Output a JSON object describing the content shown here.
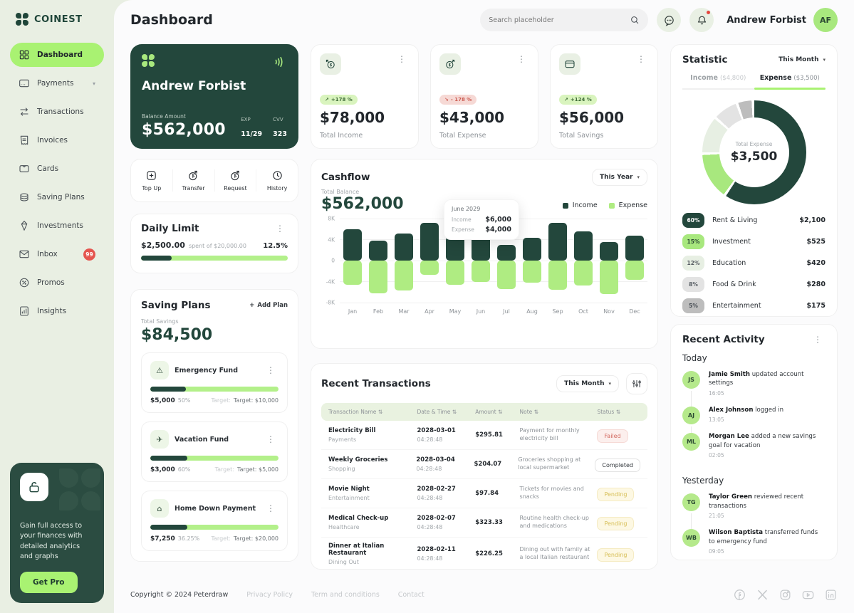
{
  "brand": {
    "name": "COINEST"
  },
  "header": {
    "title": "Dashboard",
    "search_placeholder": "Search placeholder",
    "user_name": "Andrew Forbist",
    "user_initials": "AF"
  },
  "icons": {
    "kebab": "⋮",
    "chevron_down": "▾",
    "sort": "⇅",
    "plus": "+",
    "warning_glyph": "⚠",
    "plane_glyph": "✈",
    "home_glyph": "⌂",
    "trend_up": "↗",
    "trend_down": "↘"
  },
  "sidebar": {
    "items": [
      {
        "label": "Dashboard",
        "icon": "grid",
        "active": true
      },
      {
        "label": "Payments",
        "icon": "payments",
        "chevron": true
      },
      {
        "label": "Transactions",
        "icon": "transactions"
      },
      {
        "label": "Invoices",
        "icon": "invoices"
      },
      {
        "label": "Cards",
        "icon": "cards"
      },
      {
        "label": "Saving Plans",
        "icon": "saving-plans"
      },
      {
        "label": "Investments",
        "icon": "investments"
      },
      {
        "label": "Inbox",
        "icon": "inbox",
        "badge": "99"
      },
      {
        "label": "Promos",
        "icon": "promos"
      },
      {
        "label": "Insights",
        "icon": "insights"
      }
    ],
    "promo": {
      "text": "Gain full access to your finances with detailed analytics and graphs",
      "button": "Get Pro"
    }
  },
  "balance_card": {
    "holder": "Andrew Forbist",
    "balance_label": "Balance Amount",
    "balance": "$562,000",
    "exp_label": "EXP",
    "exp": "11/29",
    "cvv_label": "CVV",
    "cvv": "323"
  },
  "quick_actions": [
    {
      "label": "Top Up",
      "icon": "topup"
    },
    {
      "label": "Transfer",
      "icon": "transfer"
    },
    {
      "label": "Request",
      "icon": "request"
    },
    {
      "label": "History",
      "icon": "history"
    }
  ],
  "stats": [
    {
      "change": "+178 %",
      "trend": "up",
      "value": "$78,000",
      "label": "Total Income",
      "icon": "income"
    },
    {
      "change": "- 178 %",
      "trend": "down",
      "value": "$43,000",
      "label": "Total Expense",
      "icon": "expense"
    },
    {
      "change": "+124 %",
      "trend": "up",
      "value": "$56,000",
      "label": "Total Savings",
      "icon": "wallet"
    }
  ],
  "daily_limit": {
    "title": "Daily Limit",
    "spent": "$2,500.00",
    "spent_suffix": "spent of $20,000.00",
    "percent": "12.5%",
    "progress_pct": 21
  },
  "saving_plans": {
    "title": "Saving Plans",
    "add_label": "Add Plan",
    "total_label": "Total Savings",
    "total": "$84,500",
    "plans": [
      {
        "name": "Emergency Fund",
        "icon": "warning",
        "amount": "$5,000",
        "percent": "50%",
        "target_label": "Target:",
        "target": "Target: $10,000",
        "progress_pct": 28
      },
      {
        "name": "Vacation Fund",
        "icon": "plane",
        "amount": "$3,000",
        "percent": "60%",
        "target_label": "Target:",
        "target": "Target: $5,000",
        "progress_pct": 29
      },
      {
        "name": "Home Down Payment",
        "icon": "home",
        "amount": "$7,250",
        "percent": "36.25%",
        "target_label": "Target:",
        "target": "Target: $20,000",
        "progress_pct": 29
      }
    ]
  },
  "cashflow": {
    "title": "Cashflow",
    "period": "This Year",
    "total_label": "Total Balance",
    "total": "$562,000",
    "tooltip": {
      "title": "June 2029",
      "income_label": "Income",
      "income": "$6,000",
      "expense_label": "Expense",
      "expense": "$4,000"
    },
    "chart_data": {
      "type": "bar",
      "title": "Cashflow",
      "categories": [
        "Jan",
        "Feb",
        "Mar",
        "Apr",
        "May",
        "Jun",
        "Jul",
        "Aug",
        "Sep",
        "Oct",
        "Nov",
        "Dec"
      ],
      "series": [
        {
          "name": "Income",
          "color": "#23473C",
          "values": [
            6.0,
            3.8,
            5.2,
            7.2,
            4.6,
            6.0,
            3.0,
            4.4,
            7.2,
            5.6,
            3.5,
            4.7
          ]
        },
        {
          "name": "Expense",
          "color": "#AFEC82",
          "values": [
            -4.6,
            -6.3,
            -5.7,
            -2.7,
            -4.6,
            -4.0,
            -5.4,
            -4.2,
            -5.5,
            -4.8,
            -6.4,
            -3.6
          ]
        }
      ],
      "y_ticks": [
        "8K",
        "4K",
        "0",
        "-4K",
        "-8K"
      ],
      "ylim": [
        -8,
        8
      ],
      "unit": "thousand dollars",
      "legend_position": "top-right",
      "grid": true
    }
  },
  "transactions": {
    "title": "Recent Transactions",
    "period": "This Month",
    "columns": [
      "Transaction Name",
      "Date & Time",
      "Amount",
      "Note",
      "Status"
    ],
    "rows": [
      {
        "name": "Electricity Bill",
        "category": "Payments",
        "date": "2028-03-01",
        "time": "04:28:48",
        "amount": "$295.81",
        "note": "Payment for monthly electricity bill",
        "status": "Failed"
      },
      {
        "name": "Weekly Groceries",
        "category": "Shopping",
        "date": "2028-03-04",
        "time": "04:28:48",
        "amount": "$204.07",
        "note": "Groceries shopping at local supermarket",
        "status": "Completed"
      },
      {
        "name": "Movie Night",
        "category": "Entertainment",
        "date": "2028-02-27",
        "time": "04:28:48",
        "amount": "$97.84",
        "note": "Tickets for movies and snacks",
        "status": "Pending"
      },
      {
        "name": "Medical Check-up",
        "category": "Healthcare",
        "date": "2028-02-07",
        "time": "04:28:48",
        "amount": "$323.33",
        "note": "Routine health check-up and medications",
        "status": "Pending"
      },
      {
        "name": "Dinner at Italian Restaurant",
        "category": "Dining Out",
        "date": "2028-02-11",
        "time": "04:28:48",
        "amount": "$226.25",
        "note": "Dining out with family at a local Italian restaurant",
        "status": "Pending"
      }
    ]
  },
  "statistic": {
    "title": "Statistic",
    "period": "This Month",
    "tabs": [
      {
        "label": "Income",
        "amount": "($4,800)",
        "active": false
      },
      {
        "label": "Expense",
        "amount": "($3,500)",
        "active": true
      }
    ],
    "chart_data": {
      "type": "donut",
      "center_label": "Total Expense",
      "center_value": "$3,500",
      "segments": [
        {
          "label": "Rent & Living",
          "pct": 60,
          "value": "$2,100",
          "color": "#23473C",
          "text_color": "#FFFFFF"
        },
        {
          "label": "Investment",
          "pct": 15,
          "value": "$525",
          "color": "#A8E87E",
          "text_color": "#2B4A33"
        },
        {
          "label": "Education",
          "pct": 12,
          "value": "$420",
          "color": "#E7EFE3",
          "text_color": "#575D63"
        },
        {
          "label": "Food & Drink",
          "pct": 8,
          "value": "$280",
          "color": "#E3E3E3",
          "text_color": "#575D63"
        },
        {
          "label": "Entertainment",
          "pct": 5,
          "value": "$175",
          "color": "#BDBDBD",
          "text_color": "#464C52"
        }
      ]
    }
  },
  "activity": {
    "title": "Recent Activity",
    "groups": [
      {
        "label": "Today",
        "items": [
          {
            "name": "Jamie Smith",
            "action": "updated account settings",
            "time": "16:05",
            "initials": "JS"
          },
          {
            "name": "Alex Johnson",
            "action": "logged in",
            "time": "13:05",
            "initials": "AJ"
          },
          {
            "name": "Morgan Lee",
            "action": "added a new savings goal for vacation",
            "time": "02:05",
            "initials": "ML"
          }
        ]
      },
      {
        "label": "Yesterday",
        "items": [
          {
            "name": "Taylor Green",
            "action": "reviewed recent transactions",
            "time": "21:05",
            "initials": "TG"
          },
          {
            "name": "Wilson Baptista",
            "action": "transferred funds to emergency fund",
            "time": "09:05",
            "initials": "WB"
          }
        ]
      }
    ]
  },
  "footer": {
    "copyright": "Copyright © 2024 Peterdraw",
    "links": [
      "Privacy Policy",
      "Term and conditions",
      "Contact"
    ],
    "socials": [
      "facebook",
      "x",
      "instagram",
      "youtube",
      "linkedin"
    ]
  }
}
